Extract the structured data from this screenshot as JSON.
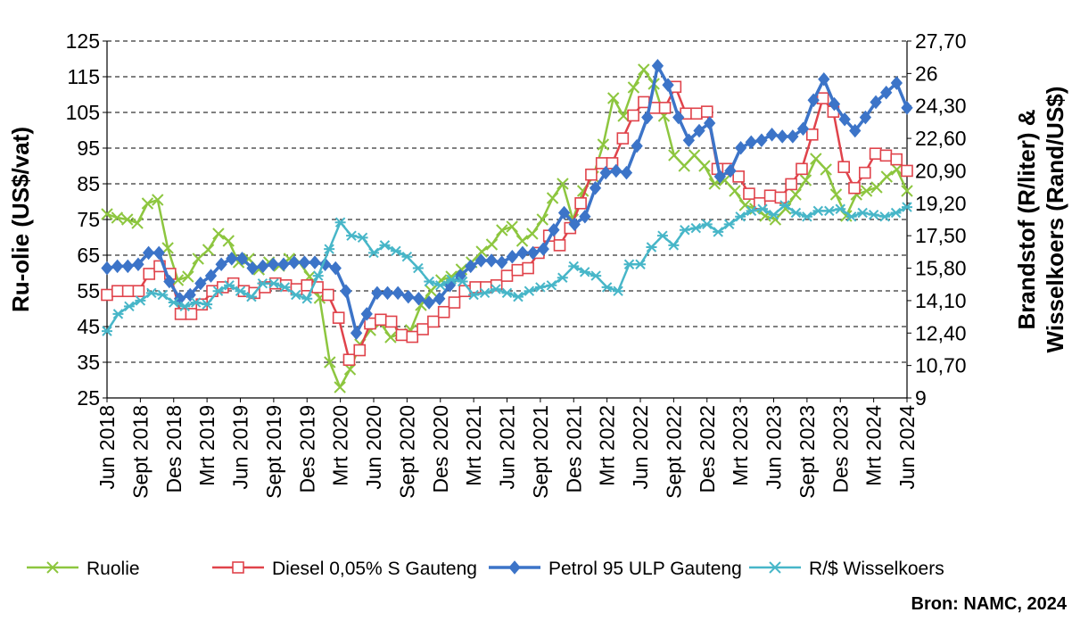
{
  "chart_data": {
    "type": "line",
    "xlabel": "",
    "ylabel": "Ru-olie (US$/vat)",
    "y2label": [
      "Brandstof (R/liter) &",
      "Wisselkoers (Rand/US$)"
    ],
    "ylim": [
      25,
      125
    ],
    "y_ticks": [
      "125",
      "115",
      "105",
      "95",
      "85",
      "75",
      "65",
      "55",
      "45",
      "35",
      "25"
    ],
    "y2lim": [
      9,
      27.7
    ],
    "y2_ticks": [
      "27,70",
      "26",
      "24,30",
      "22,60",
      "20,90",
      "19,20",
      "17,50",
      "15,80",
      "14,10",
      "12,40",
      "10,70",
      "9"
    ],
    "grid": "horizontal dashed",
    "legend_position": "bottom",
    "source": "Bron: NAMC, 2024",
    "x_tick_labels": [
      "Jun 2018",
      "Sept 2018",
      "Des 2018",
      "Mrt 2019",
      "Jun 2019",
      "Sept 2019",
      "Des 2019",
      "Mrt 2020",
      "Jun 2020",
      "Sept 2020",
      "Des 2020",
      "Mrt 2021",
      "Jun 2021",
      "Sept 2021",
      "Des 2021",
      "Mrt 2022",
      "Jun 2022",
      "Sept 2022",
      "Des 2022",
      "Mrt 2023",
      "Jun 2023",
      "Sept 2023",
      "Des 2023",
      "Mrt 2024",
      "Jun 2024"
    ],
    "series": [
      {
        "name": "Ruolie",
        "axis": "left",
        "color": "#8dc63f",
        "marker": "x",
        "values": [
          76.5,
          75.5,
          75,
          74,
          79.5,
          80.5,
          67,
          58,
          59,
          64,
          66.5,
          71,
          69,
          63,
          64,
          61,
          63,
          62,
          64,
          63,
          59,
          53,
          35,
          28,
          33,
          40,
          44,
          46,
          42,
          43,
          44,
          51,
          55,
          58,
          59,
          61,
          63,
          66,
          68,
          72,
          73,
          69,
          71,
          75,
          81,
          85,
          75,
          83,
          87,
          96,
          109,
          104,
          112,
          117,
          113,
          104,
          93,
          90,
          93,
          90,
          85,
          86,
          83,
          79,
          78,
          76,
          75,
          78,
          82,
          86,
          92,
          89,
          82,
          76,
          82,
          83,
          84,
          87,
          89,
          83
        ]
      },
      {
        "name": "Diesel 0,05% S Gauteng",
        "axis": "right",
        "color": "#e0434b",
        "marker": "square",
        "values": [
          14.4,
          14.6,
          14.6,
          14.6,
          15.5,
          15.9,
          15.5,
          13.4,
          13.4,
          13.9,
          14.6,
          14.8,
          15.0,
          14.6,
          14.5,
          14.8,
          15.0,
          14.9,
          14.7,
          14.9,
          14.8,
          14.4,
          13.2,
          11.0,
          11.5,
          12.9,
          13.1,
          13.0,
          12.3,
          12.2,
          12.6,
          13.0,
          13.5,
          14.0,
          14.6,
          14.8,
          14.8,
          14.9,
          15.4,
          15.7,
          15.8,
          16.6,
          17.5,
          17.0,
          17.9,
          19.2,
          20.7,
          21.3,
          21.3,
          22.6,
          23.8,
          24.5,
          24.2,
          24.2,
          25.3,
          23.9,
          23.9,
          24.0,
          21.0,
          21.0,
          20.6,
          19.7,
          19.2,
          19.6,
          19.5,
          20.2,
          21.0,
          22.8,
          24.7,
          24.0,
          21.1,
          20.0,
          20.8,
          21.8,
          21.7,
          21.5,
          20.9
        ]
      },
      {
        "name": "Petrol 95 ULP Gauteng",
        "axis": "right",
        "color": "#3c74c8",
        "marker": "diamond",
        "values": [
          15.8,
          15.9,
          15.9,
          16.0,
          16.6,
          16.6,
          15.1,
          14.2,
          14.4,
          15.0,
          15.4,
          16.0,
          16.3,
          16.3,
          15.8,
          15.9,
          16.0,
          16.0,
          16.1,
          16.1,
          16.1,
          16.0,
          15.8,
          14.6,
          12.4,
          13.4,
          14.5,
          14.5,
          14.5,
          14.3,
          14.2,
          14.0,
          14.2,
          14.9,
          15.4,
          15.9,
          16.2,
          16.2,
          16.1,
          16.4,
          16.6,
          16.6,
          16.8,
          17.8,
          18.7,
          18.1,
          18.5,
          20.0,
          20.8,
          20.9,
          20.8,
          22.2,
          23.7,
          26.4,
          25.4,
          23.7,
          22.5,
          23.0,
          23.4,
          20.6,
          20.9,
          22.1,
          22.4,
          22.5,
          22.8,
          22.7,
          22.7,
          23.1,
          24.6,
          25.7,
          24.4,
          23.6,
          23.0,
          23.7,
          24.5,
          25.0,
          25.5,
          24.2
        ]
      },
      {
        "name": "R/$ Wisselkoers",
        "axis": "right",
        "color": "#47b6c8",
        "marker": "star",
        "values": [
          12.5,
          13.4,
          13.8,
          14.1,
          14.5,
          14.4,
          14.0,
          13.8,
          14.0,
          13.9,
          14.6,
          14.9,
          14.6,
          14.3,
          15.0,
          15.0,
          14.8,
          14.4,
          14.2,
          15.4,
          16.8,
          18.2,
          17.5,
          17.4,
          16.6,
          17.0,
          16.7,
          16.4,
          15.8,
          15.1,
          14.9,
          15.2,
          15.1,
          14.4,
          14.5,
          14.7,
          14.5,
          14.3,
          14.6,
          14.8,
          14.9,
          15.3,
          15.9,
          15.6,
          15.4,
          14.8,
          14.6,
          16.0,
          16.0,
          16.9,
          17.5,
          17.0,
          17.8,
          17.9,
          18.1,
          17.7,
          18.1,
          18.5,
          18.8,
          18.9,
          18.6,
          19.1,
          18.7,
          18.5,
          18.8,
          18.8,
          18.9,
          18.5,
          18.7,
          18.6,
          18.5,
          18.7,
          19.0
        ]
      }
    ]
  },
  "legend": [
    {
      "label": "Ruolie"
    },
    {
      "label": "Diesel 0,05% S Gauteng"
    },
    {
      "label": "Petrol 95 ULP Gauteng"
    },
    {
      "label": "R/$ Wisselkoers"
    }
  ]
}
